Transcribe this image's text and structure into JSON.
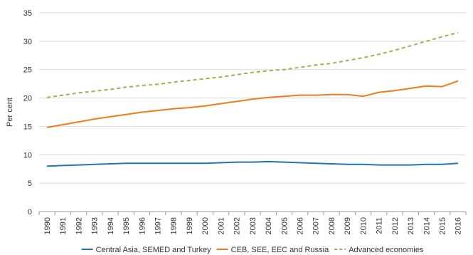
{
  "chart_data": {
    "type": "line",
    "ylabel": "Per cent",
    "ylim": [
      0,
      35
    ],
    "yticks": [
      0,
      5,
      10,
      15,
      20,
      25,
      30,
      35
    ],
    "grid": "horizontal",
    "legend_position": "bottom",
    "x": [
      "1990",
      "1991",
      "1992",
      "1993",
      "1994",
      "1995",
      "1996",
      "1997",
      "1998",
      "1999",
      "2000",
      "2001",
      "2002",
      "2003",
      "2004",
      "2005",
      "2006",
      "2007",
      "2008",
      "2009",
      "2010",
      "2011",
      "2012",
      "2013",
      "2014",
      "2015",
      "2016"
    ],
    "series": [
      {
        "name": "Central Asia, SEMED and Turkey",
        "color": "#1f77b4",
        "style": "solid",
        "values": [
          8.0,
          8.1,
          8.2,
          8.3,
          8.4,
          8.5,
          8.5,
          8.5,
          8.5,
          8.5,
          8.5,
          8.6,
          8.7,
          8.7,
          8.8,
          8.7,
          8.6,
          8.5,
          8.4,
          8.3,
          8.3,
          8.2,
          8.2,
          8.2,
          8.3,
          8.3,
          8.5
        ]
      },
      {
        "name": "CEB, SEE, EEC and Russia",
        "color": "#f07c19",
        "style": "solid",
        "values": [
          14.8,
          15.3,
          15.8,
          16.3,
          16.7,
          17.1,
          17.5,
          17.8,
          18.1,
          18.3,
          18.6,
          19.0,
          19.4,
          19.8,
          20.1,
          20.3,
          20.5,
          20.5,
          20.6,
          20.6,
          20.3,
          21.0,
          21.3,
          21.7,
          22.1,
          22.0,
          23.0
        ]
      },
      {
        "name": "Advanced economies",
        "color": "#8fba4a",
        "style": "dashed",
        "values": [
          20.1,
          20.5,
          20.9,
          21.2,
          21.5,
          21.9,
          22.2,
          22.4,
          22.8,
          23.1,
          23.4,
          23.7,
          24.1,
          24.5,
          24.8,
          25.0,
          25.4,
          25.8,
          26.1,
          26.6,
          27.1,
          27.7,
          28.4,
          29.2,
          30.0,
          30.8,
          31.5
        ]
      }
    ]
  }
}
